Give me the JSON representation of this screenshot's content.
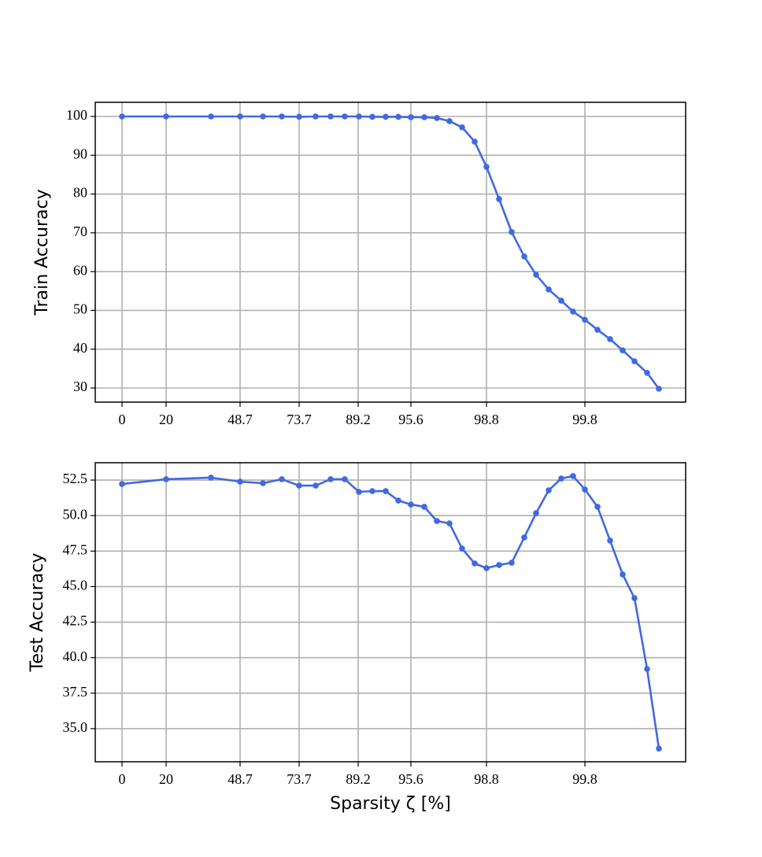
{
  "chart_data": [
    {
      "type": "line",
      "ylabel": "Train Accuracy",
      "x": [
        0,
        0.56,
        1.13,
        1.5,
        1.79,
        2.03,
        2.25,
        2.46,
        2.65,
        2.83,
        3.01,
        3.18,
        3.35,
        3.51,
        3.67,
        3.84,
        4.0,
        4.16,
        4.32,
        4.48,
        4.63,
        4.79,
        4.95,
        5.11,
        5.26,
        5.42,
        5.58,
        5.73,
        5.88,
        6.04,
        6.2,
        6.36,
        6.51,
        6.67,
        6.82
      ],
      "series": [
        {
          "color": "#4169e1",
          "values": [
            100,
            100,
            100,
            100,
            100,
            100,
            99.9,
            100,
            100,
            100,
            100,
            99.9,
            99.9,
            99.9,
            99.8,
            99.8,
            99.6,
            98.8,
            97.2,
            93.5,
            87.0,
            78.7,
            70.2,
            63.9,
            59.2,
            55.4,
            52.5,
            49.7,
            47.6,
            45.0,
            42.6,
            39.7,
            36.9,
            33.9,
            29.8
          ]
        }
      ],
      "xlim": [
        -0.34,
        7.16
      ],
      "xticks": [
        {
          "value": 0,
          "label": "0"
        },
        {
          "value": 0.56,
          "label": "20"
        },
        {
          "value": 1.5,
          "label": "48.7"
        },
        {
          "value": 2.25,
          "label": "73.7"
        },
        {
          "value": 3.0,
          "label": "89.2"
        },
        {
          "value": 3.67,
          "label": "95.6"
        },
        {
          "value": 4.63,
          "label": "98.8"
        },
        {
          "value": 5.88,
          "label": "99.8"
        }
      ],
      "ylim": [
        26.35,
        103.65
      ],
      "yticks": [
        30,
        40,
        50,
        60,
        70,
        80,
        90,
        100
      ],
      "grid": true
    },
    {
      "type": "line",
      "ylabel": "Test Accuracy",
      "xlabel": "Sparsity ζ [%]",
      "x": [
        0,
        0.56,
        1.13,
        1.5,
        1.79,
        2.03,
        2.25,
        2.46,
        2.65,
        2.83,
        3.01,
        3.18,
        3.35,
        3.51,
        3.67,
        3.84,
        4.0,
        4.16,
        4.32,
        4.48,
        4.63,
        4.79,
        4.95,
        5.11,
        5.26,
        5.42,
        5.58,
        5.73,
        5.88,
        6.04,
        6.2,
        6.36,
        6.51,
        6.67,
        6.82
      ],
      "series": [
        {
          "color": "#4169e1",
          "values": [
            52.22,
            52.56,
            52.67,
            52.39,
            52.28,
            52.56,
            52.11,
            52.11,
            52.56,
            52.56,
            51.67,
            51.72,
            51.72,
            51.06,
            50.78,
            50.62,
            49.62,
            49.45,
            47.68,
            46.63,
            46.3,
            46.52,
            46.68,
            48.46,
            50.17,
            51.78,
            52.61,
            52.78,
            51.84,
            50.62,
            48.24,
            45.86,
            44.19,
            39.2,
            33.6
          ]
        }
      ],
      "xlim": [
        -0.34,
        7.16
      ],
      "xticks": [
        {
          "value": 0,
          "label": "0"
        },
        {
          "value": 0.56,
          "label": "20"
        },
        {
          "value": 1.5,
          "label": "48.7"
        },
        {
          "value": 2.25,
          "label": "73.7"
        },
        {
          "value": 3.0,
          "label": "89.2"
        },
        {
          "value": 3.67,
          "label": "95.6"
        },
        {
          "value": 4.63,
          "label": "98.8"
        },
        {
          "value": 5.88,
          "label": "99.8"
        }
      ],
      "ylim": [
        32.67,
        53.72
      ],
      "yticks": [
        {
          "value": 35,
          "label": "35.0"
        },
        {
          "value": 37.5,
          "label": "37.5"
        },
        {
          "value": 40,
          "label": "40.0"
        },
        {
          "value": 42.5,
          "label": "42.5"
        },
        {
          "value": 45,
          "label": "45.0"
        },
        {
          "value": 47.5,
          "label": "47.5"
        },
        {
          "value": 50,
          "label": "50.0"
        },
        {
          "value": 52.5,
          "label": "52.5"
        }
      ],
      "grid": true
    }
  ]
}
